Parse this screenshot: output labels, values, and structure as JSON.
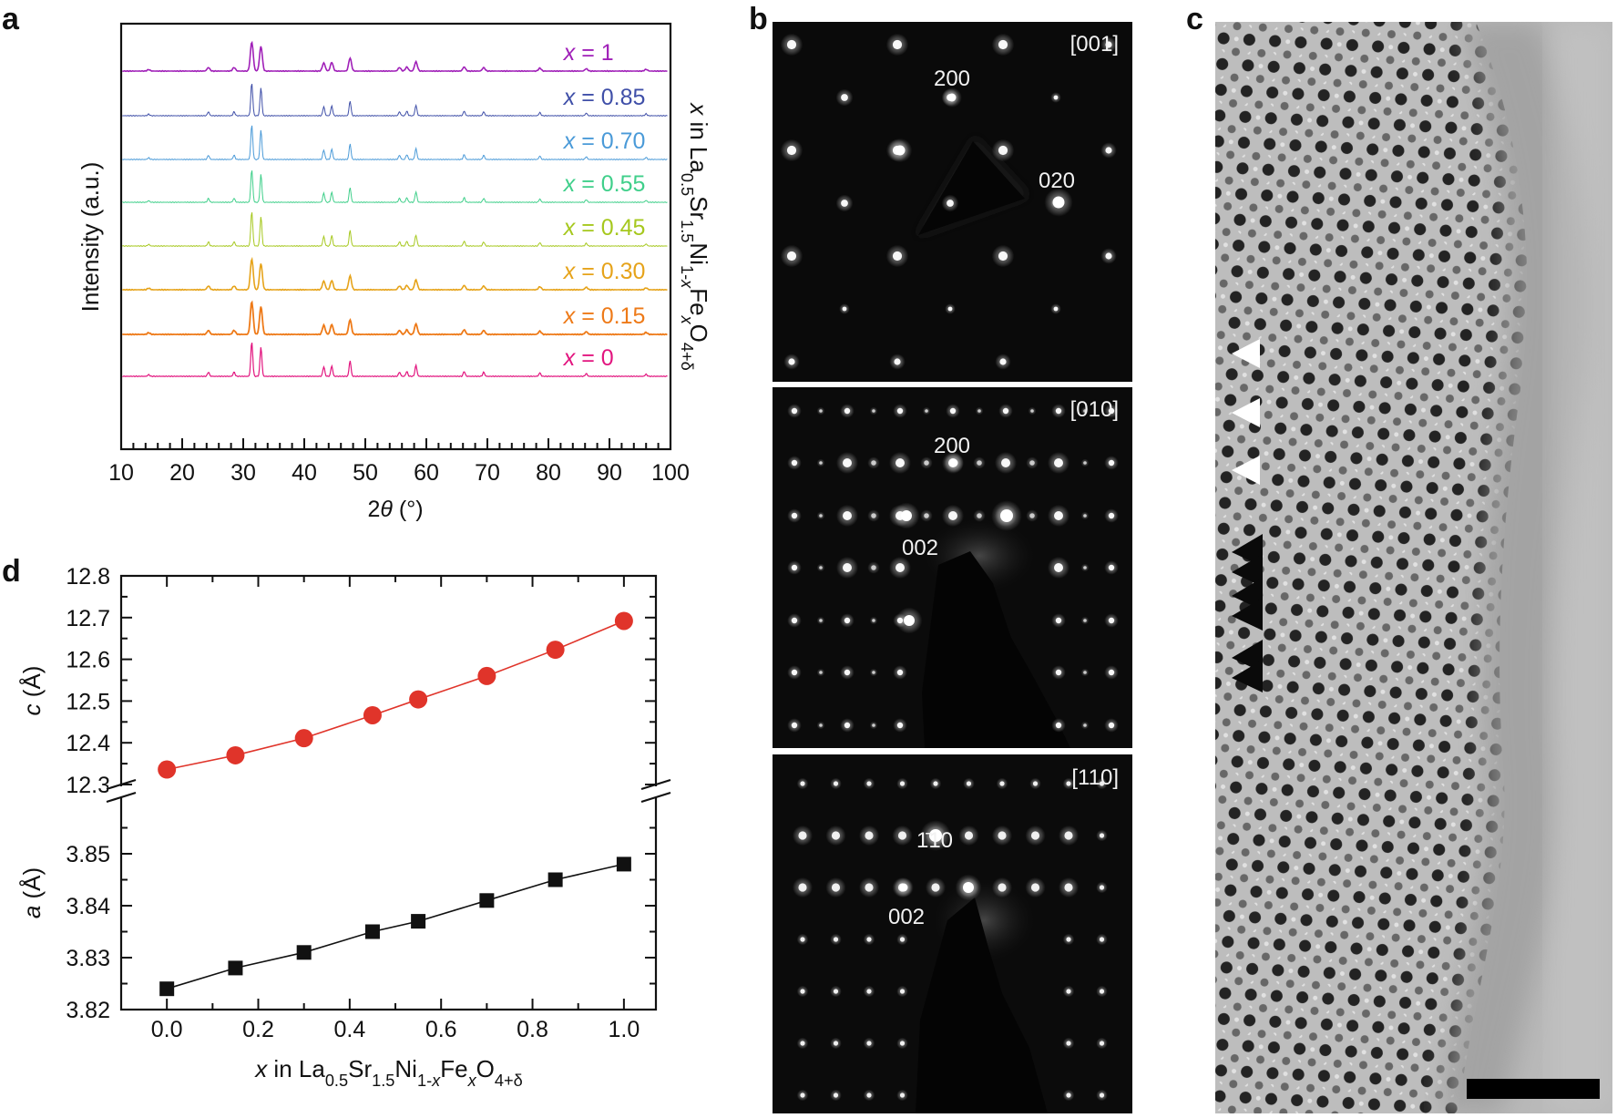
{
  "panels": {
    "a": "a",
    "b": "b",
    "c": "c",
    "d": "d"
  },
  "chart_data": [
    {
      "id": "a",
      "type": "line",
      "title": "",
      "xlabel": "2θ (°)",
      "ylabel": "Intensity (a.u.)",
      "right_label": "x in La0.5Sr1.5Ni1-xFexO4+δ",
      "xlim": [
        10,
        100
      ],
      "x_ticks": [
        10,
        20,
        30,
        40,
        50,
        60,
        70,
        80,
        90,
        100
      ],
      "grid": false,
      "peaks_2theta": [
        14.5,
        24.3,
        28.5,
        31.4,
        32.9,
        43.2,
        44.5,
        47.5,
        55.6,
        56.8,
        58.3,
        66.2,
        69.4,
        78.6,
        86.2,
        96.0
      ],
      "peak_intensity": [
        0.05,
        0.12,
        0.12,
        1.0,
        0.85,
        0.28,
        0.3,
        0.45,
        0.12,
        0.14,
        0.32,
        0.14,
        0.12,
        0.1,
        0.08,
        0.06
      ],
      "series": [
        {
          "name": "x = 1",
          "x": "1",
          "color": "#a020b8",
          "width": 1.6
        },
        {
          "name": "x = 0.85",
          "x": "0.85",
          "color": "#3f4fa8",
          "width": 1.0
        },
        {
          "name": "x = 0.70",
          "x": "0.70",
          "color": "#4a9ad8",
          "width": 1.0
        },
        {
          "name": "x = 0.55",
          "x": "0.55",
          "color": "#3fcf8a",
          "width": 1.0
        },
        {
          "name": "x = 0.45",
          "x": "0.45",
          "color": "#a6c81e",
          "width": 1.0
        },
        {
          "name": "x = 0.30",
          "x": "0.30",
          "color": "#e6a31a",
          "width": 1.6
        },
        {
          "name": "x = 0.15",
          "x": "0.15",
          "color": "#ee7a18",
          "width": 1.8
        },
        {
          "name": "x = 0",
          "x": "0",
          "color": "#e2157f",
          "width": 1.2
        }
      ]
    },
    {
      "id": "b",
      "type": "other",
      "images": [
        {
          "zone": "[001]",
          "labels": [
            "200",
            "020"
          ]
        },
        {
          "zone": "[010]",
          "labels": [
            "200",
            "002"
          ]
        },
        {
          "zone": "[110]",
          "labels": [
            "1̄10",
            "002"
          ]
        }
      ]
    },
    {
      "id": "c",
      "type": "other",
      "description_label": ""
    },
    {
      "id": "d",
      "type": "scatter",
      "xlabel": "x in La0.5Sr1.5Ni1-xFexO4+δ",
      "x": [
        0.0,
        0.15,
        0.3,
        0.45,
        0.55,
        0.7,
        0.85,
        1.0
      ],
      "xlim": [
        -0.1,
        1.07
      ],
      "x_ticks": [
        "0.0",
        "0.2",
        "0.4",
        "0.6",
        "0.8",
        "1.0"
      ],
      "series": [
        {
          "name": "c",
          "ylabel": "c (Å)",
          "values": [
            12.336,
            12.37,
            12.411,
            12.466,
            12.504,
            12.56,
            12.623,
            12.692
          ],
          "ylim": [
            12.3,
            12.8
          ],
          "y_ticks": [
            "12.3",
            "12.4",
            "12.5",
            "12.6",
            "12.7",
            "12.8"
          ],
          "color": "#e0342a",
          "marker": "circle"
        },
        {
          "name": "a",
          "ylabel": "a (Å)",
          "values": [
            3.824,
            3.828,
            3.831,
            3.835,
            3.837,
            3.841,
            3.845,
            3.848
          ],
          "ylim": [
            3.82,
            3.86
          ],
          "y_ticks": [
            "3.82",
            "3.83",
            "3.84",
            "3.85"
          ],
          "color": "#111111",
          "marker": "square"
        }
      ]
    }
  ]
}
